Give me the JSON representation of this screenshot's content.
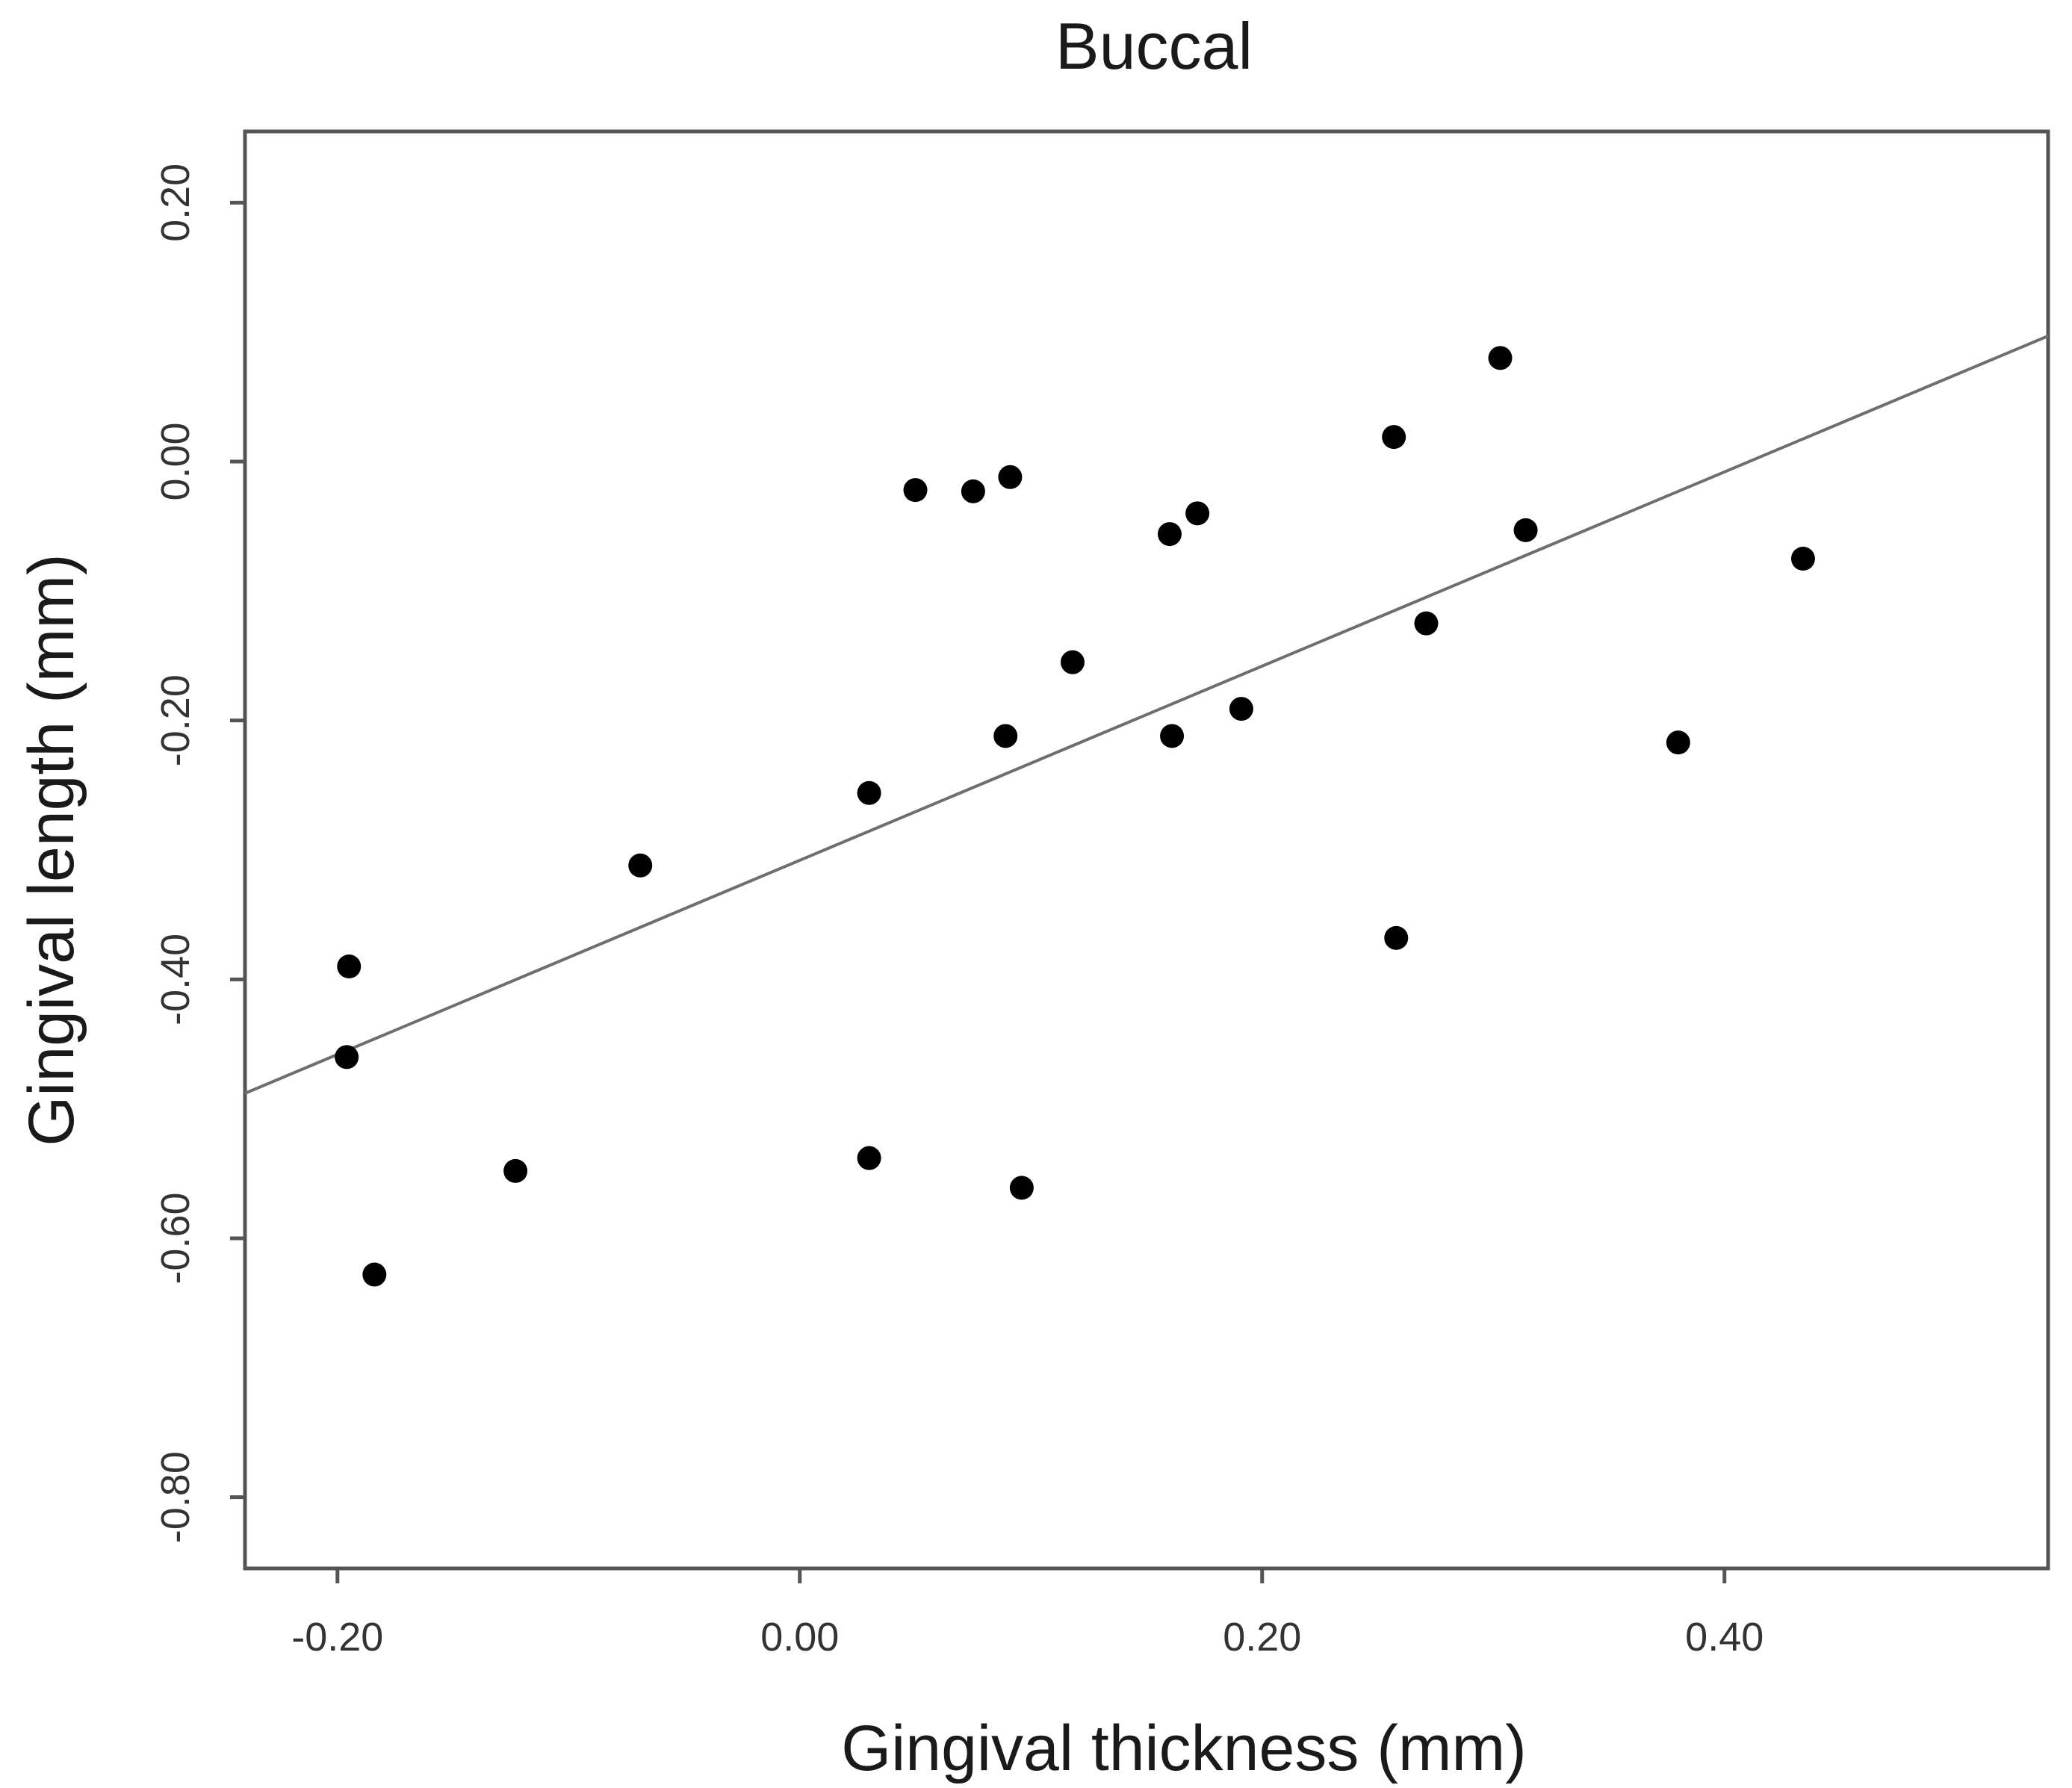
{
  "chart_data": {
    "type": "scatter",
    "title": "Buccal",
    "xlabel": "Gingival thickness (mm)",
    "ylabel": "Gingival length (mm)",
    "xlim": [
      -0.24,
      0.54
    ],
    "ylim": [
      -0.855,
      0.255
    ],
    "xticks": [
      -0.2,
      0.0,
      0.2,
      0.4
    ],
    "xtick_labels": [
      "-0.20",
      "0.00",
      "0.20",
      "0.40"
    ],
    "yticks": [
      0.2,
      0.0,
      -0.2,
      -0.4,
      -0.6,
      -0.8
    ],
    "ytick_labels": [
      "0.20",
      "0.00",
      "-0.20",
      "-0.40",
      "-0.60",
      "-0.80"
    ],
    "grid": false,
    "series": [
      {
        "name": "Buccal",
        "points": [
          {
            "x": -0.195,
            "y": -0.39
          },
          {
            "x": -0.196,
            "y": -0.46
          },
          {
            "x": -0.184,
            "y": -0.628
          },
          {
            "x": -0.123,
            "y": -0.548
          },
          {
            "x": -0.069,
            "y": -0.312
          },
          {
            "x": 0.03,
            "y": -0.256
          },
          {
            "x": 0.03,
            "y": -0.538
          },
          {
            "x": 0.05,
            "y": -0.022
          },
          {
            "x": 0.075,
            "y": -0.023
          },
          {
            "x": 0.089,
            "y": -0.212
          },
          {
            "x": 0.091,
            "y": -0.012
          },
          {
            "x": 0.096,
            "y": -0.561
          },
          {
            "x": 0.118,
            "y": -0.155
          },
          {
            "x": 0.16,
            "y": -0.056
          },
          {
            "x": 0.161,
            "y": -0.212
          },
          {
            "x": 0.172,
            "y": -0.04
          },
          {
            "x": 0.191,
            "y": -0.191
          },
          {
            "x": 0.257,
            "y": 0.019
          },
          {
            "x": 0.258,
            "y": -0.368
          },
          {
            "x": 0.271,
            "y": -0.125
          },
          {
            "x": 0.303,
            "y": 0.08
          },
          {
            "x": 0.314,
            "y": -0.053
          },
          {
            "x": 0.38,
            "y": -0.217
          },
          {
            "x": 0.434,
            "y": -0.075
          }
        ]
      }
    ],
    "fit_line": {
      "x": [
        -0.24,
        0.54
      ],
      "y": [
        -0.488,
        0.097
      ]
    }
  }
}
